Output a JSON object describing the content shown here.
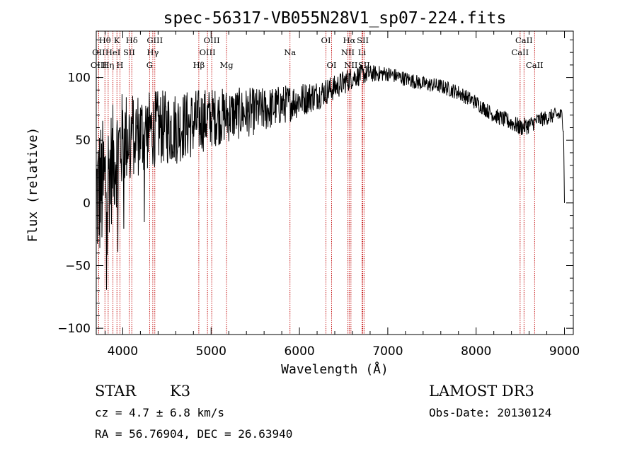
{
  "chart_data": {
    "type": "line",
    "title": "spec-56317-VB055N28V1_sp07-224.fits",
    "xlabel": "Wavelength (Å)",
    "ylabel": "Flux (relative)",
    "xlim": [
      3700,
      9100
    ],
    "ylim": [
      -105,
      137
    ],
    "x_ticks": [
      4000,
      5000,
      6000,
      7000,
      8000,
      9000
    ],
    "y_ticks": [
      -100,
      -50,
      0,
      50,
      100
    ],
    "x_tick_labels": [
      "4000",
      "5000",
      "6000",
      "7000",
      "8000",
      "9000"
    ],
    "y_tick_labels": [
      "−100",
      "−50",
      "0",
      "50",
      "100"
    ],
    "series": [
      {
        "name": "flux",
        "color": "#000000",
        "anchors_x": [
          3700,
          3800,
          3900,
          4000,
          4100,
          4200,
          4300,
          4400,
          4500,
          4600,
          4700,
          4800,
          4900,
          5000,
          5200,
          5400,
          5600,
          5800,
          6000,
          6200,
          6400,
          6500,
          6600,
          6700,
          6800,
          7000,
          7200,
          7400,
          7600,
          7800,
          8000,
          8200,
          8400,
          8500,
          8600,
          8700,
          8800,
          8900,
          8970,
          8990,
          9000
        ],
        "anchors_y": [
          5,
          15,
          35,
          50,
          55,
          55,
          58,
          60,
          60,
          60,
          62,
          63,
          66,
          68,
          70,
          72,
          74,
          78,
          82,
          86,
          92,
          96,
          100,
          102,
          103,
          103,
          99,
          95,
          93,
          88,
          80,
          70,
          64,
          60,
          62,
          66,
          68,
          70,
          70,
          60,
          0
        ],
        "noise_amplitude": [
          60,
          55,
          45,
          40,
          35,
          35,
          32,
          30,
          30,
          30,
          28,
          28,
          26,
          24,
          22,
          20,
          18,
          16,
          14,
          12,
          10,
          10,
          9,
          8,
          7,
          6,
          6,
          6,
          6,
          6,
          6,
          6,
          7,
          7,
          7,
          6,
          6,
          6,
          6,
          6,
          0
        ]
      }
    ],
    "spectral_lines": [
      {
        "label": "Hθ",
        "wavelength": 3798,
        "row": 1
      },
      {
        "label": "OII",
        "wavelength": 3727,
        "row": 2
      },
      {
        "label": "OIII",
        "wavelength": 3727,
        "row": 3
      },
      {
        "label": "K",
        "wavelength": 3934,
        "row": 1
      },
      {
        "label": "HeI",
        "wavelength": 3889,
        "row": 2
      },
      {
        "label": "Hη",
        "wavelength": 3835,
        "row": 3
      },
      {
        "label": "SII",
        "wavelength": 4072,
        "row": 2
      },
      {
        "label": "H",
        "wavelength": 3968,
        "row": 3
      },
      {
        "label": "Hδ",
        "wavelength": 4102,
        "row": 1
      },
      {
        "label": "GIII",
        "wavelength": 4363,
        "row": 1
      },
      {
        "label": "Hγ",
        "wavelength": 4340,
        "row": 2
      },
      {
        "label": "G",
        "wavelength": 4304,
        "row": 3
      },
      {
        "label": "OIII",
        "wavelength": 5007,
        "row": 1
      },
      {
        "label": "OIII",
        "wavelength": 4959,
        "row": 2
      },
      {
        "label": "Hβ",
        "wavelength": 4861,
        "row": 3
      },
      {
        "label": "Mg",
        "wavelength": 5175,
        "row": 3
      },
      {
        "label": "Na",
        "wavelength": 5893,
        "row": 2
      },
      {
        "label": "OI",
        "wavelength": 6300,
        "row": 1
      },
      {
        "label": "OI",
        "wavelength": 6364,
        "row": 3
      },
      {
        "label": "Hα",
        "wavelength": 6563,
        "row": 1
      },
      {
        "label": "NII",
        "wavelength": 6548,
        "row": 2
      },
      {
        "label": "NII",
        "wavelength": 6583,
        "row": 3
      },
      {
        "label": "SII",
        "wavelength": 6717,
        "row": 1
      },
      {
        "label": "Li",
        "wavelength": 6708,
        "row": 2
      },
      {
        "label": "SII",
        "wavelength": 6731,
        "row": 3
      },
      {
        "label": "CaII",
        "wavelength": 8542,
        "row": 1
      },
      {
        "label": "CaII",
        "wavelength": 8498,
        "row": 2
      },
      {
        "label": "CaII",
        "wavelength": 8662,
        "row": 3
      }
    ]
  },
  "footer": {
    "object_class": "STAR",
    "subclass": "K3",
    "cz": "cz = 4.7 ± 6.8 km/s",
    "coords": "RA =  56.76904, DEC =  26.63940",
    "survey": "LAMOST DR3",
    "obs_date": "Obs-Date: 20130124"
  },
  "colors": {
    "line_marker": "#c00000",
    "spectrum": "#000000",
    "axes": "#000000"
  }
}
